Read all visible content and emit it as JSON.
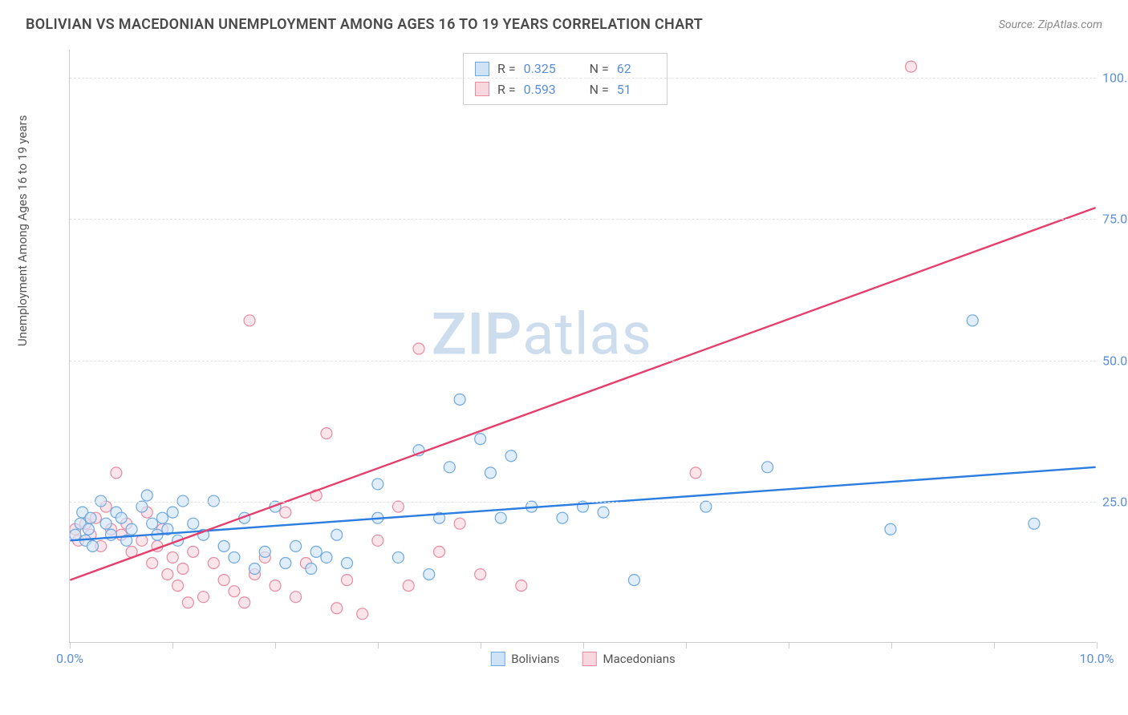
{
  "header": {
    "title": "BOLIVIAN VS MACEDONIAN UNEMPLOYMENT AMONG AGES 16 TO 19 YEARS CORRELATION CHART",
    "source_prefix": "Source: ",
    "source": "ZipAtlas.com"
  },
  "chart": {
    "type": "scatter",
    "y_axis_label": "Unemployment Among Ages 16 to 19 years",
    "x_range": [
      0,
      10
    ],
    "y_range": [
      0,
      105
    ],
    "x_ticks": [
      0,
      1,
      2,
      3,
      4,
      5,
      6,
      7,
      8,
      9,
      10
    ],
    "x_tick_labels": {
      "0": "0.0%",
      "10": "10.0%"
    },
    "y_gridlines": [
      25,
      50,
      75,
      100
    ],
    "y_tick_labels": {
      "25": "25.0%",
      "50": "50.0%",
      "75": "75.0%",
      "100": "100.0%"
    },
    "grid_color": "#e4e4e4",
    "axis_color": "#cccccc",
    "tick_label_color": "#5b8fd6",
    "axis_label_color": "#555555",
    "background_color": "#ffffff",
    "point_radius": 7,
    "point_stroke_width": 1.2,
    "trend_line_width": 2.4,
    "watermark_text_1": "ZIP",
    "watermark_text_2": "atlas",
    "watermark_color": "#b8cfe8"
  },
  "series": {
    "bolivians": {
      "label": "Bolivians",
      "fill": "#cfe3f7",
      "stroke": "#6ea8e0",
      "fill_opacity": 0.65,
      "trend_color": "#2b7de1",
      "trend": {
        "x1": 0,
        "y1": 18.0,
        "x2": 10,
        "y2": 31.0
      },
      "stats": {
        "R": "0.325",
        "N": "62"
      },
      "points": [
        [
          0.05,
          19
        ],
        [
          0.1,
          21
        ],
        [
          0.12,
          23
        ],
        [
          0.15,
          18
        ],
        [
          0.18,
          20
        ],
        [
          0.2,
          22
        ],
        [
          0.22,
          17
        ],
        [
          0.3,
          25
        ],
        [
          0.35,
          21
        ],
        [
          0.4,
          19
        ],
        [
          0.45,
          23
        ],
        [
          0.5,
          22
        ],
        [
          0.55,
          18
        ],
        [
          0.6,
          20
        ],
        [
          0.7,
          24
        ],
        [
          0.75,
          26
        ],
        [
          0.8,
          21
        ],
        [
          0.85,
          19
        ],
        [
          0.9,
          22
        ],
        [
          0.95,
          20
        ],
        [
          1.0,
          23
        ],
        [
          1.05,
          18
        ],
        [
          1.1,
          25
        ],
        [
          1.2,
          21
        ],
        [
          1.3,
          19
        ],
        [
          1.4,
          25
        ],
        [
          1.5,
          17
        ],
        [
          1.6,
          15
        ],
        [
          1.7,
          22
        ],
        [
          1.8,
          13
        ],
        [
          1.9,
          16
        ],
        [
          2.0,
          24
        ],
        [
          2.1,
          14
        ],
        [
          2.2,
          17
        ],
        [
          2.35,
          13
        ],
        [
          2.4,
          16
        ],
        [
          2.5,
          15
        ],
        [
          2.6,
          19
        ],
        [
          2.7,
          14
        ],
        [
          3.0,
          28
        ],
        [
          3.0,
          22
        ],
        [
          3.2,
          15
        ],
        [
          3.4,
          34
        ],
        [
          3.5,
          12
        ],
        [
          3.6,
          22
        ],
        [
          3.7,
          31
        ],
        [
          3.8,
          43
        ],
        [
          4.0,
          36
        ],
        [
          4.1,
          30
        ],
        [
          4.2,
          22
        ],
        [
          4.3,
          33
        ],
        [
          4.5,
          24
        ],
        [
          4.8,
          22
        ],
        [
          5.0,
          24
        ],
        [
          5.2,
          23
        ],
        [
          5.5,
          11
        ],
        [
          6.2,
          24
        ],
        [
          6.8,
          31
        ],
        [
          8.0,
          20
        ],
        [
          8.8,
          57
        ],
        [
          9.4,
          21
        ]
      ]
    },
    "macedonians": {
      "label": "Macedonians",
      "fill": "#f8d7df",
      "stroke": "#e88aa0",
      "fill_opacity": 0.65,
      "trend_color": "#e63e6d",
      "trend": {
        "x1": 0,
        "y1": 11.0,
        "x2": 10,
        "y2": 77.0
      },
      "stats": {
        "R": "0.593",
        "N": "51"
      },
      "points": [
        [
          0.05,
          20
        ],
        [
          0.08,
          18
        ],
        [
          0.15,
          21
        ],
        [
          0.2,
          19
        ],
        [
          0.25,
          22
        ],
        [
          0.3,
          17
        ],
        [
          0.35,
          24
        ],
        [
          0.4,
          20
        ],
        [
          0.45,
          30
        ],
        [
          0.5,
          19
        ],
        [
          0.55,
          21
        ],
        [
          0.6,
          16
        ],
        [
          0.7,
          18
        ],
        [
          0.75,
          23
        ],
        [
          0.8,
          14
        ],
        [
          0.85,
          17
        ],
        [
          0.9,
          20
        ],
        [
          0.95,
          12
        ],
        [
          1.0,
          15
        ],
        [
          1.05,
          10
        ],
        [
          1.1,
          13
        ],
        [
          1.15,
          7
        ],
        [
          1.2,
          16
        ],
        [
          1.3,
          8
        ],
        [
          1.4,
          14
        ],
        [
          1.5,
          11
        ],
        [
          1.6,
          9
        ],
        [
          1.7,
          7
        ],
        [
          1.75,
          57
        ],
        [
          1.8,
          12
        ],
        [
          1.9,
          15
        ],
        [
          2.0,
          10
        ],
        [
          2.1,
          23
        ],
        [
          2.2,
          8
        ],
        [
          2.3,
          14
        ],
        [
          2.4,
          26
        ],
        [
          2.5,
          37
        ],
        [
          2.6,
          6
        ],
        [
          2.7,
          11
        ],
        [
          2.85,
          5
        ],
        [
          3.0,
          18
        ],
        [
          3.2,
          24
        ],
        [
          3.3,
          10
        ],
        [
          3.4,
          52
        ],
        [
          3.6,
          16
        ],
        [
          3.8,
          21
        ],
        [
          4.0,
          12
        ],
        [
          4.4,
          10
        ],
        [
          6.1,
          30
        ],
        [
          8.2,
          102
        ]
      ]
    }
  },
  "stats_box": {
    "r_label": "R =",
    "n_label": "N ="
  },
  "legend": {
    "bolivians": "Bolivians",
    "macedonians": "Macedonians"
  }
}
